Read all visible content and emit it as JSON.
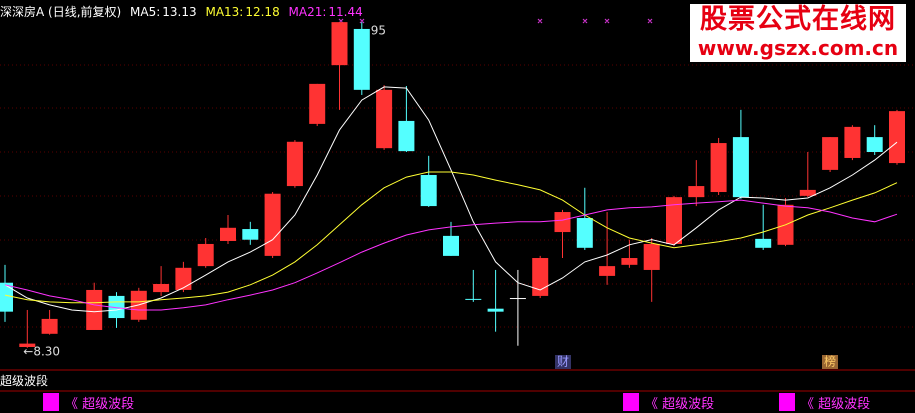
{
  "chart_data": {
    "type": "candlestick",
    "title": "深深房A (日线,前复权)",
    "ylim": [
      7.78,
      16.47
    ],
    "up_color": "#ff3333",
    "down_color": "#54ffff",
    "flat_color": "#ffffff",
    "open": [
      9.83,
      8.32,
      8.63,
      null,
      8.72,
      9.52,
      8.96,
      9.61,
      9.66,
      10.22,
      10.81,
      11.09,
      10.46,
      12.1,
      13.56,
      14.94,
      15.79,
      12.99,
      13.63,
      12.36,
      10.93,
      9.45,
      9.22,
      9.47,
      9.52,
      11.02,
      11.35,
      9.99,
      10.25,
      10.13,
      10.74,
      11.84,
      11.96,
      13.25,
      10.86,
      10.72,
      11.87,
      12.48,
      12.76,
      13.25,
      12.64
    ],
    "high": [
      10.25,
      9.19,
      9.19,
      null,
      9.83,
      9.61,
      9.71,
      10.22,
      10.32,
      10.88,
      11.42,
      11.26,
      11.96,
      13.18,
      14.5,
      15.95,
      15.95,
      14.47,
      14.45,
      12.81,
      11.26,
      10.13,
      10.13,
      10.13,
      10.46,
      11.54,
      12.06,
      11.49,
      10.84,
      10.88,
      11.87,
      12.71,
      13.23,
      13.89,
      11.66,
      11.82,
      12.9,
      13.25,
      13.53,
      13.53,
      13.89
    ],
    "low": [
      8.91,
      8.3,
      8.61,
      null,
      8.72,
      8.77,
      8.91,
      9.52,
      9.61,
      10.18,
      10.74,
      10.72,
      10.41,
      12.06,
      13.51,
      13.89,
      14.24,
      12.95,
      12.9,
      11.61,
      10.46,
      9.38,
      8.68,
      8.35,
      9.47,
      10.41,
      10.6,
      9.78,
      10.18,
      9.38,
      10.69,
      11.63,
      11.89,
      11.8,
      10.6,
      10.69,
      11.84,
      12.43,
      12.71,
      12.83,
      12.6
    ],
    "close": [
      9.15,
      8.4,
      8.98,
      null,
      9.66,
      9.0,
      9.64,
      9.8,
      10.18,
      10.74,
      11.12,
      10.84,
      11.92,
      13.14,
      14.5,
      15.95,
      14.36,
      14.36,
      12.92,
      11.63,
      10.46,
      9.43,
      9.15,
      9.47,
      10.41,
      11.49,
      10.65,
      10.22,
      10.41,
      10.74,
      11.84,
      12.1,
      13.11,
      11.84,
      10.65,
      11.66,
      12.01,
      13.25,
      13.49,
      12.9,
      13.86
    ],
    "series": [
      {
        "name": "MA5:",
        "color": "#ffffff",
        "values": [
          9.78,
          9.47,
          9.31,
          9.19,
          9.15,
          9.19,
          9.31,
          9.47,
          9.71,
          10.01,
          10.32,
          10.55,
          10.84,
          11.42,
          12.36,
          13.42,
          14.12,
          14.43,
          14.4,
          13.65,
          12.48,
          11.26,
          10.32,
          9.83,
          9.66,
          9.94,
          10.32,
          10.48,
          10.72,
          10.84,
          10.72,
          11.12,
          11.54,
          11.84,
          11.82,
          11.77,
          11.82,
          12.06,
          12.36,
          12.71,
          13.13
        ]
      },
      {
        "name": "MA13:",
        "color": "#ffff33",
        "values": [
          9.54,
          9.43,
          9.38,
          9.36,
          9.36,
          9.38,
          9.38,
          9.43,
          9.47,
          9.52,
          9.61,
          9.78,
          10.01,
          10.32,
          10.72,
          11.19,
          11.66,
          12.06,
          12.31,
          12.43,
          12.43,
          12.36,
          12.24,
          12.13,
          12.01,
          11.77,
          11.42,
          11.12,
          10.88,
          10.76,
          10.65,
          10.72,
          10.79,
          10.88,
          11.02,
          11.19,
          11.42,
          11.59,
          11.77,
          11.94,
          12.18
        ]
      },
      {
        "name": "MA21:",
        "color": "#ff33ff",
        "values": [
          9.78,
          9.66,
          9.52,
          9.43,
          9.31,
          9.24,
          9.19,
          9.19,
          9.24,
          9.31,
          9.43,
          9.54,
          9.66,
          9.83,
          10.06,
          10.3,
          10.55,
          10.76,
          10.95,
          11.07,
          11.14,
          11.19,
          11.23,
          11.26,
          11.26,
          11.3,
          11.42,
          11.54,
          11.59,
          11.61,
          11.66,
          11.7,
          11.73,
          11.77,
          11.7,
          11.63,
          11.59,
          11.49,
          11.35,
          11.26,
          11.44
        ]
      }
    ],
    "annotations": [
      {
        "value": 15.95,
        "label": "95"
      },
      {
        "value": 8.3,
        "label": "←8.30"
      }
    ],
    "markers": [
      "财",
      "榜"
    ]
  },
  "watermark": {
    "title": "股票公式在线网",
    "url": "www.gszx.com.cn"
  },
  "indicator": {
    "name": "超级波段",
    "signals": [
      "《 超级波段",
      "《 超级波段",
      "《 超级波段"
    ]
  }
}
